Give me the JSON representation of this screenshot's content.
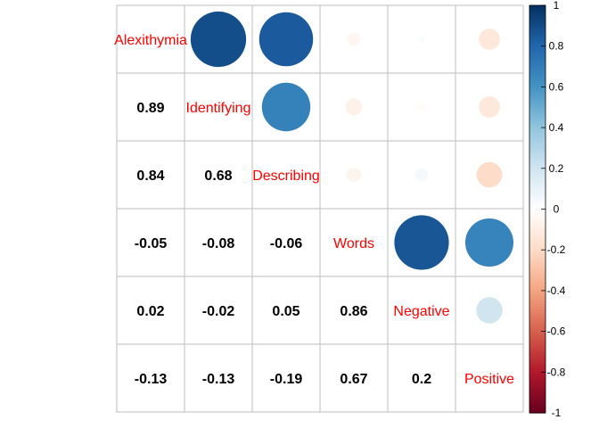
{
  "chart_data": {
    "type": "heatmap",
    "variables": [
      "Alexithymia",
      "Identifying",
      "Describing",
      "Words",
      "Negative",
      "Positive"
    ],
    "matrix": [
      [
        1.0,
        0.89,
        0.84,
        -0.05,
        0.02,
        -0.13
      ],
      [
        0.89,
        1.0,
        0.68,
        -0.08,
        -0.02,
        -0.13
      ],
      [
        0.84,
        0.68,
        1.0,
        -0.06,
        0.05,
        -0.19
      ],
      [
        -0.05,
        -0.08,
        -0.06,
        1.0,
        0.86,
        0.67
      ],
      [
        0.02,
        -0.02,
        0.05,
        0.86,
        1.0,
        0.2
      ],
      [
        -0.13,
        -0.13,
        -0.19,
        0.67,
        0.2,
        1.0
      ]
    ],
    "lower_labels": [
      [
        "0.89"
      ],
      [
        "0.84",
        "0.68"
      ],
      [
        "-0.05",
        "-0.08",
        "-0.06"
      ],
      [
        "0.02",
        "-0.02",
        "0.05",
        "0.86"
      ],
      [
        "-0.13",
        "-0.13",
        "-0.19",
        "0.67",
        "0.2"
      ]
    ],
    "upper": "circle",
    "lower": "number",
    "colorbar": {
      "range": [
        -1,
        1
      ],
      "tick_labels": [
        "1",
        "0.8",
        "0.6",
        "0.4",
        "0.2",
        "0",
        "-0.2",
        "-0.4",
        "-0.6",
        "-0.8",
        "-1"
      ]
    },
    "colors": {
      "label": "#ff0000",
      "grid": "#bebebe",
      "scale": [
        "#67001f",
        "#b2182b",
        "#d6604d",
        "#f4a582",
        "#fddbc7",
        "#ffffff",
        "#d1e5f0",
        "#92c5de",
        "#4393c3",
        "#2166ac",
        "#053061"
      ]
    }
  }
}
